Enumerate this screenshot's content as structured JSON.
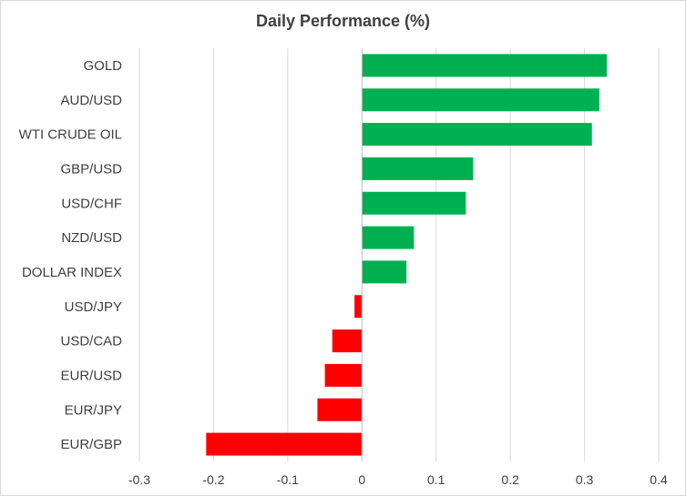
{
  "chart_data": {
    "type": "bar",
    "orientation": "horizontal",
    "title": "Daily Performance (%)",
    "xlabel": "",
    "ylabel": "",
    "xlim": [
      -0.3,
      0.4
    ],
    "xticks": [
      -0.3,
      -0.2,
      -0.1,
      0,
      0.1,
      0.2,
      0.3,
      0.4
    ],
    "xtick_labels": [
      "-0.3",
      "-0.2",
      "-0.1",
      "0",
      "0.1",
      "0.2",
      "0.3",
      "0.4"
    ],
    "grid": "vertical",
    "legend": "none",
    "categories": [
      "GOLD",
      "AUD/USD",
      "WTI CRUDE OIL",
      "GBP/USD",
      "USD/CHF",
      "NZD/USD",
      "DOLLAR INDEX",
      "USD/JPY",
      "USD/CAD",
      "EUR/USD",
      "EUR/JPY",
      "EUR/GBP"
    ],
    "values": [
      0.33,
      0.32,
      0.31,
      0.15,
      0.14,
      0.07,
      0.06,
      -0.01,
      -0.04,
      -0.05,
      -0.06,
      -0.21
    ],
    "colors": {
      "positive": "#00b050",
      "negative": "#ff0000",
      "grid": "#d9d9d9",
      "text": "#404040"
    }
  }
}
